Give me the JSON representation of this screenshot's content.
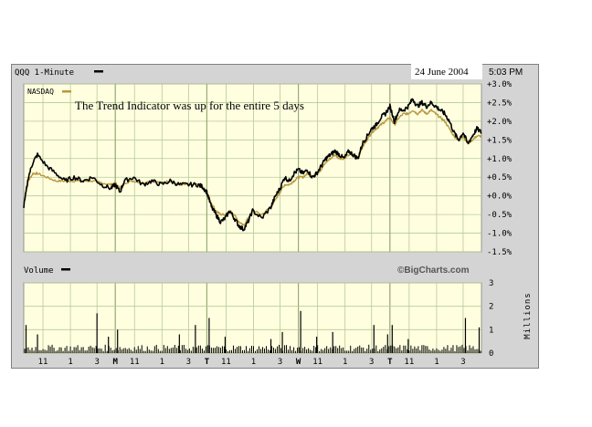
{
  "header": {
    "symbol_label": "QQQ 1-Minute",
    "date": "24 June 2004",
    "time": "5:03 PM"
  },
  "colors": {
    "plot_bg": "#ffffe0",
    "grid": "#b8c896",
    "price_line": "#000000",
    "nasdaq_line": "#b8973f",
    "frame": "#d4d4d4"
  },
  "chart_data": [
    {
      "type": "line",
      "title": "",
      "legend": "top-left",
      "grid": true,
      "ylim": [
        -1.5,
        3.0
      ],
      "ylabel": "",
      "y_ticks": [
        "+3.0%",
        "+2.5%",
        "+2.0%",
        "+1.5%",
        "+1.0%",
        "+0.5%",
        "+0.0%",
        "-0.5%",
        "-1.0%",
        "-1.5%"
      ],
      "y_tick_values": [
        3.0,
        2.5,
        2.0,
        1.5,
        1.0,
        0.5,
        0.0,
        -0.5,
        -1.0,
        -1.5
      ],
      "annotation": "The Trend Indicator was up for the entire 5 days",
      "x_ticks": [
        "11",
        "1",
        "3",
        "M",
        "11",
        "1",
        "3",
        "T",
        "11",
        "1",
        "3",
        "W",
        "11",
        "1",
        "3",
        "T",
        "11",
        "1",
        "3"
      ],
      "x_range": [
        0,
        100
      ],
      "x_tick_positions": [
        4.2,
        10.2,
        16.0,
        20.0,
        24.2,
        30.2,
        36.0,
        40.0,
        44.2,
        50.2,
        56.0,
        60.0,
        64.2,
        70.2,
        76.0,
        80.0,
        84.2,
        90.2,
        96.0
      ],
      "day_separators": [
        20,
        40,
        60,
        80
      ],
      "series": [
        {
          "name": "",
          "x": [
            0,
            1,
            2,
            3,
            5,
            7,
            9,
            11,
            13,
            15,
            17,
            19,
            20,
            21,
            22,
            24,
            26,
            28,
            30,
            32,
            34,
            36,
            38,
            39,
            40,
            41,
            42,
            43,
            44,
            45,
            46,
            47,
            48,
            49,
            50,
            52,
            54,
            55,
            56,
            57,
            58,
            59,
            60,
            61,
            62,
            63,
            64,
            65,
            66,
            67,
            68,
            69,
            70,
            71,
            72,
            73,
            74,
            75,
            76,
            77,
            78,
            79,
            80,
            81,
            82,
            83,
            84,
            85,
            86,
            87,
            88,
            89,
            90,
            91,
            92,
            93,
            94,
            95,
            96,
            97,
            98,
            99,
            100
          ],
          "values": [
            -0.3,
            0.5,
            0.9,
            1.1,
            0.8,
            0.6,
            0.4,
            0.5,
            0.4,
            0.5,
            0.3,
            0.2,
            0.3,
            0.1,
            0.4,
            0.5,
            0.3,
            0.4,
            0.3,
            0.4,
            0.3,
            0.3,
            0.3,
            0.25,
            0.1,
            -0.3,
            -0.5,
            -0.7,
            -0.6,
            -0.4,
            -0.6,
            -0.8,
            -0.9,
            -0.7,
            -0.4,
            -0.6,
            -0.3,
            0.0,
            0.2,
            0.5,
            0.4,
            0.6,
            0.7,
            0.6,
            0.7,
            0.5,
            0.6,
            0.8,
            1.0,
            1.1,
            1.2,
            1.1,
            1.0,
            1.2,
            1.1,
            1.0,
            1.4,
            1.6,
            1.8,
            1.9,
            2.1,
            2.2,
            2.4,
            2.0,
            2.3,
            2.3,
            2.4,
            2.6,
            2.4,
            2.5,
            2.4,
            2.5,
            2.4,
            2.3,
            2.2,
            2.0,
            1.7,
            1.5,
            1.7,
            1.4,
            1.6,
            1.8,
            1.7
          ]
        },
        {
          "name": "NASDAQ",
          "x": [
            0,
            1,
            2,
            3,
            5,
            7,
            9,
            11,
            13,
            15,
            17,
            19,
            20,
            21,
            22,
            24,
            26,
            28,
            30,
            32,
            34,
            36,
            38,
            39,
            40,
            41,
            42,
            43,
            44,
            45,
            46,
            47,
            48,
            49,
            50,
            52,
            54,
            55,
            56,
            57,
            58,
            59,
            60,
            61,
            62,
            63,
            64,
            65,
            66,
            67,
            68,
            69,
            70,
            71,
            72,
            73,
            74,
            75,
            76,
            77,
            78,
            79,
            80,
            81,
            82,
            83,
            84,
            85,
            86,
            87,
            88,
            89,
            90,
            91,
            92,
            93,
            94,
            95,
            96,
            97,
            98,
            99,
            100
          ],
          "values": [
            -0.2,
            0.4,
            0.6,
            0.6,
            0.5,
            0.4,
            0.4,
            0.4,
            0.4,
            0.4,
            0.35,
            0.3,
            0.35,
            0.2,
            0.35,
            0.4,
            0.35,
            0.4,
            0.35,
            0.4,
            0.3,
            0.3,
            0.3,
            0.25,
            0.1,
            -0.2,
            -0.4,
            -0.5,
            -0.5,
            -0.4,
            -0.5,
            -0.7,
            -0.8,
            -0.6,
            -0.4,
            -0.5,
            -0.3,
            -0.1,
            0.1,
            0.3,
            0.3,
            0.4,
            0.5,
            0.5,
            0.6,
            0.5,
            0.6,
            0.7,
            0.9,
            1.0,
            1.1,
            1.0,
            1.0,
            1.1,
            1.1,
            1.0,
            1.3,
            1.5,
            1.7,
            1.8,
            1.9,
            2.0,
            2.1,
            1.9,
            2.1,
            2.2,
            2.2,
            2.3,
            2.2,
            2.3,
            2.2,
            2.3,
            2.2,
            2.1,
            2.0,
            1.8,
            1.6,
            1.5,
            1.6,
            1.4,
            1.5,
            1.6,
            1.6
          ]
        }
      ]
    },
    {
      "type": "bar",
      "title": "",
      "legend_label": "Volume",
      "brand": "©BigCharts.com",
      "ylabel": "Millions",
      "ylim": [
        0,
        3
      ],
      "y_ticks": [
        "3",
        "2",
        "1",
        "0"
      ],
      "y_tick_values": [
        3,
        2,
        1,
        0
      ],
      "x_range": [
        0,
        100
      ],
      "baseline_level": 0.2,
      "spikes": [
        {
          "x": 0.5,
          "value": 1.2
        },
        {
          "x": 3.0,
          "value": 0.8
        },
        {
          "x": 16.0,
          "value": 1.7
        },
        {
          "x": 18.5,
          "value": 0.7
        },
        {
          "x": 20.5,
          "value": 1.0
        },
        {
          "x": 34.0,
          "value": 0.8
        },
        {
          "x": 37.5,
          "value": 1.2
        },
        {
          "x": 40.5,
          "value": 1.5
        },
        {
          "x": 44.0,
          "value": 0.7
        },
        {
          "x": 54.0,
          "value": 0.6
        },
        {
          "x": 56.5,
          "value": 0.9
        },
        {
          "x": 60.5,
          "value": 1.8
        },
        {
          "x": 64.0,
          "value": 0.7
        },
        {
          "x": 67.5,
          "value": 0.9
        },
        {
          "x": 76.5,
          "value": 1.2
        },
        {
          "x": 79.5,
          "value": 0.8
        },
        {
          "x": 80.5,
          "value": 1.2
        },
        {
          "x": 84.0,
          "value": 0.6
        },
        {
          "x": 96.5,
          "value": 1.5
        },
        {
          "x": 99.5,
          "value": 1.1
        }
      ]
    }
  ]
}
